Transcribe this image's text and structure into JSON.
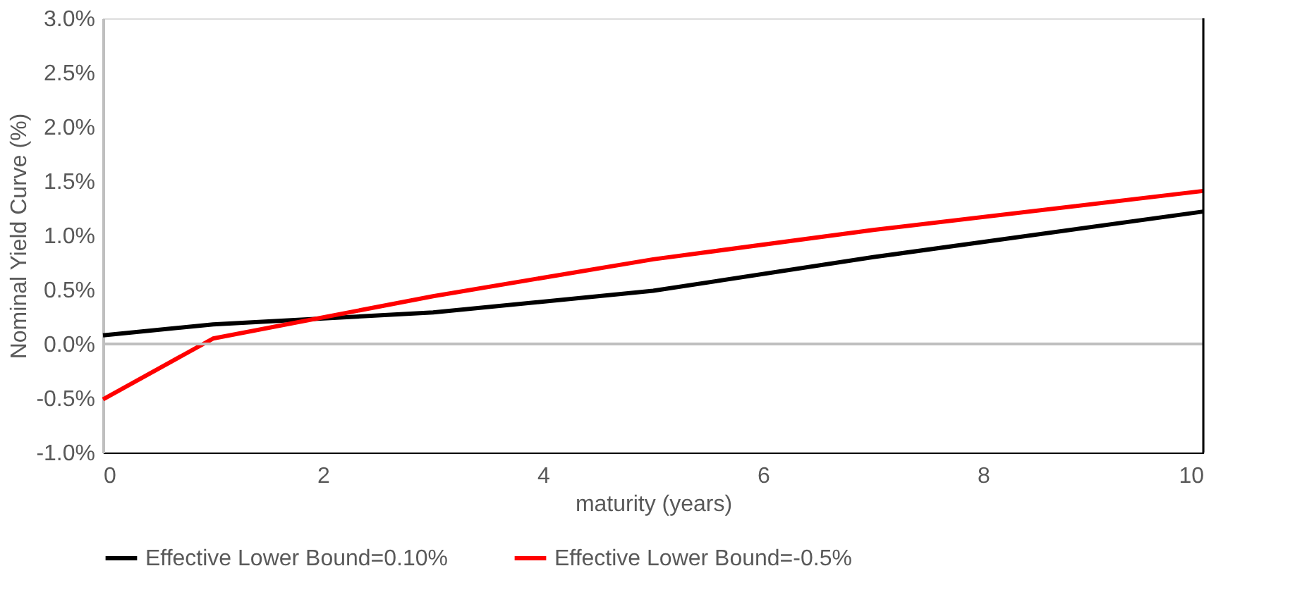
{
  "chart_data": {
    "type": "line",
    "xlabel": "maturity (years)",
    "ylabel": "Nominal Yield Curve (%)",
    "x": [
      0,
      1,
      3,
      5,
      7,
      10
    ],
    "series": [
      {
        "name": "Effective Lower Bound=0.10%",
        "color": "#000000",
        "values": [
          0.08,
          0.18,
          0.29,
          0.49,
          0.8,
          1.22
        ]
      },
      {
        "name": "Effective Lower Bound=-0.5%",
        "color": "#ff0000",
        "values": [
          -0.51,
          0.05,
          0.44,
          0.78,
          1.05,
          1.41
        ]
      }
    ],
    "xlim": [
      0,
      10
    ],
    "xticks": [
      0,
      2,
      4,
      6,
      8,
      10
    ],
    "ylim": [
      -1,
      3
    ],
    "yticks": [
      {
        "value": -1,
        "label": "-1.0%"
      },
      {
        "value": -0.5,
        "label": "-0.5%"
      },
      {
        "value": 0,
        "label": "0.0%"
      },
      {
        "value": 0.5,
        "label": "0.5%"
      },
      {
        "value": 1,
        "label": "1.0%"
      },
      {
        "value": 1.5,
        "label": "1.5%"
      },
      {
        "value": 2,
        "label": "2.0%"
      },
      {
        "value": 2.5,
        "label": "2.5%"
      },
      {
        "value": 3,
        "label": "3.0%"
      }
    ],
    "ref_lines": [
      {
        "axis": "y",
        "value": 0,
        "label": null,
        "color": "#bfbfbf"
      }
    ],
    "grid": false,
    "legend": "bottom",
    "marker": "none",
    "line_style": "solid"
  }
}
